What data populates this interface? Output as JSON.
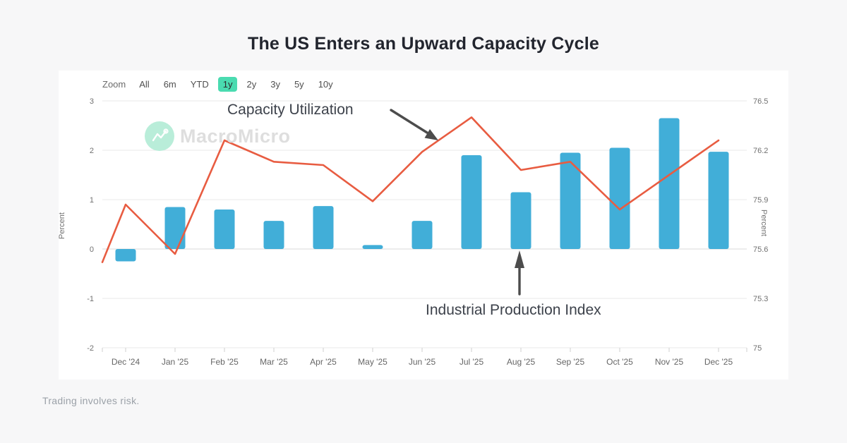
{
  "page": {
    "title": "The US Enters an Upward Capacity Cycle",
    "footer": "Trading involves risk."
  },
  "watermark": {
    "brand": "MacroMicro"
  },
  "zoom_bar": {
    "label": "Zoom",
    "items": [
      "All",
      "6m",
      "YTD",
      "1y",
      "2y",
      "3y",
      "5y",
      "10y"
    ],
    "selected": "1y"
  },
  "annotations": {
    "line_label": "Capacity Utilization",
    "bar_label": "Industrial Production Index"
  },
  "colors": {
    "bar": "#41aed8",
    "line": "#e85c41",
    "zoom_selected_bg": "#4adbb0",
    "watermark_circle": "#b9edd9",
    "arrow": "#4c4c4c",
    "grid": "#e9e9e9",
    "zero_line": "#dadada",
    "tick": "#cfcfcf",
    "axis_text": "#707070"
  },
  "chart_data": {
    "type": "combo",
    "categories": [
      "Dec '24",
      "Jan '25",
      "Feb '25",
      "Mar '25",
      "Apr '25",
      "May '25",
      "Jun '25",
      "Jul '25",
      "Aug '25",
      "Sep '25",
      "Oct '25",
      "Nov '25",
      "Dec '25"
    ],
    "series": [
      {
        "name": "Industrial Production Index",
        "type": "bar",
        "axis": "left",
        "color": "#41aed8",
        "values": [
          -0.25,
          0.85,
          0.8,
          0.57,
          0.87,
          0.08,
          0.57,
          1.9,
          1.15,
          1.95,
          2.05,
          2.65,
          1.97
        ]
      },
      {
        "name": "Capacity Utilization",
        "type": "line",
        "axis": "right",
        "color": "#e85c41",
        "edge_start_value": 75.52,
        "values": [
          75.87,
          75.57,
          76.26,
          76.13,
          76.11,
          75.89,
          76.19,
          76.4,
          76.08,
          76.13,
          75.84,
          76.05,
          76.26
        ]
      }
    ],
    "left_axis": {
      "label": "Percent",
      "min": -2,
      "max": 3,
      "ticks": [
        3,
        2,
        1,
        0,
        -1,
        -2
      ]
    },
    "right_axis": {
      "label": "Percent",
      "min": 75,
      "max": 76.5,
      "ticks": [
        "76.5",
        "76.2",
        "75.9",
        "75.6",
        "75.3",
        "75"
      ]
    },
    "grid": true,
    "legend_position": "none (series labeled by arrow annotations)"
  }
}
